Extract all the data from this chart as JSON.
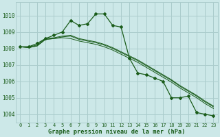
{
  "background_color": "#cce8e8",
  "grid_color": "#aacccc",
  "line_color": "#1a5c1a",
  "xlabel": "Graphe pression niveau de la mer (hPa)",
  "x_ticks": [
    0,
    1,
    2,
    3,
    4,
    5,
    6,
    7,
    8,
    9,
    10,
    11,
    12,
    13,
    14,
    15,
    16,
    17,
    18,
    19,
    20,
    21,
    22,
    23
  ],
  "ylim": [
    1003.5,
    1010.8
  ],
  "y_ticks": [
    1004,
    1005,
    1006,
    1007,
    1008,
    1009,
    1010
  ],
  "series_main": [
    1008.1,
    1008.1,
    1008.3,
    1008.6,
    1008.8,
    1009.0,
    1009.7,
    1009.4,
    1009.5,
    1010.1,
    1010.1,
    1009.4,
    1009.3,
    1007.4,
    1006.5,
    1006.4,
    1006.2,
    1006.0,
    1005.0,
    1005.0,
    1005.1,
    1004.1,
    1004.0,
    1003.9
  ],
  "series_flat1": [
    1008.1,
    1008.05,
    1008.15,
    1008.55,
    1008.6,
    1008.65,
    1008.6,
    1008.45,
    1008.35,
    1008.25,
    1008.1,
    1007.9,
    1007.65,
    1007.4,
    1007.15,
    1006.85,
    1006.55,
    1006.25,
    1005.95,
    1005.6,
    1005.3,
    1005.0,
    1004.65,
    1004.35
  ],
  "series_flat2": [
    1008.1,
    1008.05,
    1008.15,
    1008.55,
    1008.6,
    1008.7,
    1008.75,
    1008.55,
    1008.45,
    1008.35,
    1008.2,
    1008.0,
    1007.75,
    1007.5,
    1007.25,
    1006.95,
    1006.65,
    1006.35,
    1006.05,
    1005.7,
    1005.4,
    1005.1,
    1004.75,
    1004.45
  ],
  "series_flat3": [
    1008.1,
    1008.1,
    1008.2,
    1008.6,
    1008.65,
    1008.75,
    1008.8,
    1008.6,
    1008.5,
    1008.4,
    1008.25,
    1008.05,
    1007.8,
    1007.55,
    1007.3,
    1007.0,
    1006.7,
    1006.4,
    1006.1,
    1005.75,
    1005.45,
    1005.15,
    1004.8,
    1004.5
  ]
}
